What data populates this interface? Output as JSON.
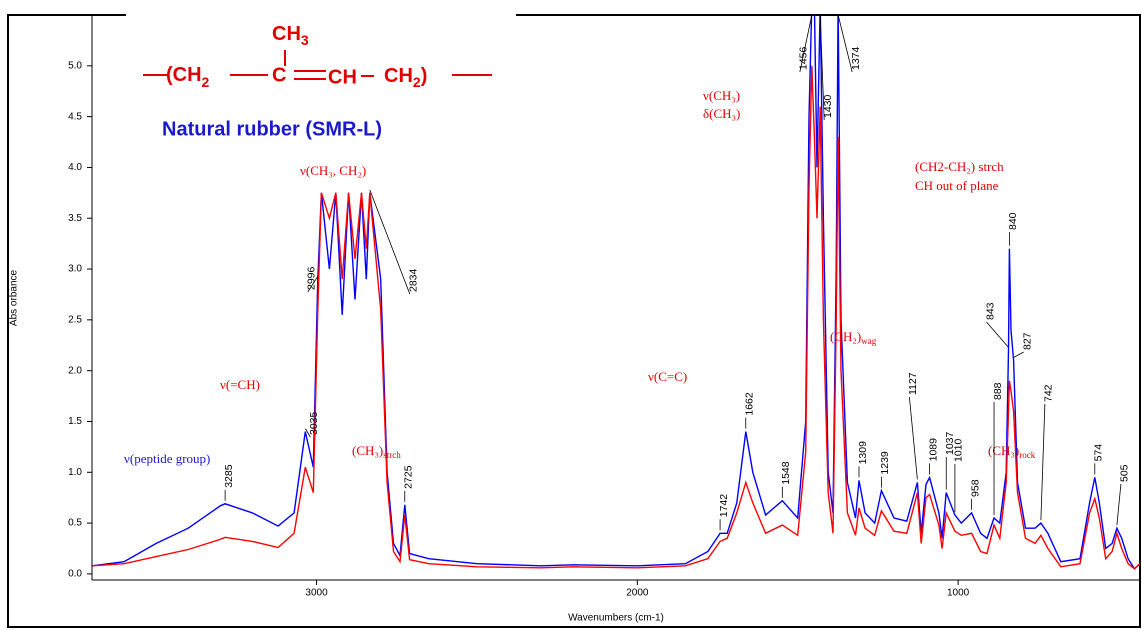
{
  "chart_data": {
    "type": "line",
    "x_label": "Wavenumbers (cm-1)",
    "y_label": "Abs orbance",
    "xlim": [
      3700,
      433
    ],
    "ylim": [
      -0.06,
      5.5
    ],
    "xticks": [
      3000,
      2000,
      1000
    ],
    "yticks": [
      {
        "value": 0,
        "label": "0.0"
      },
      0.5,
      {
        "value": 1,
        "label": "1.0"
      },
      1.5,
      {
        "value": 2,
        "label": "2.0"
      },
      2.5,
      {
        "value": 3,
        "label": "3.0"
      },
      3.5,
      {
        "value": 4,
        "label": "4.0"
      },
      4.5,
      {
        "value": 5,
        "label": "5.0"
      }
    ],
    "x": [
      3700,
      3600,
      3500,
      3400,
      3300,
      3285,
      3200,
      3120,
      3070,
      3035,
      3010,
      2996,
      2985,
      2960,
      2940,
      2920,
      2900,
      2880,
      2860,
      2845,
      2834,
      2800,
      2780,
      2760,
      2740,
      2725,
      2710,
      2650,
      2500,
      2300,
      2200,
      2000,
      1850,
      1780,
      1742,
      1720,
      1690,
      1662,
      1640,
      1600,
      1548,
      1500,
      1475,
      1465,
      1456,
      1448,
      1440,
      1430,
      1420,
      1405,
      1390,
      1380,
      1374,
      1365,
      1345,
      1320,
      1309,
      1290,
      1260,
      1239,
      1200,
      1160,
      1127,
      1115,
      1100,
      1089,
      1060,
      1050,
      1037,
      1010,
      990,
      958,
      930,
      910,
      888,
      870,
      850,
      843,
      840,
      835,
      827,
      815,
      790,
      760,
      742,
      720,
      680,
      620,
      590,
      574,
      560,
      540,
      520,
      505,
      490,
      470,
      450,
      433
    ],
    "series": [
      {
        "name": "Natural rubber (SMR-L)",
        "color": "#0000ff",
        "values": [
          0.08,
          0.12,
          0.3,
          0.45,
          0.67,
          0.69,
          0.6,
          0.47,
          0.6,
          1.4,
          1.05,
          2.9,
          3.75,
          3.0,
          3.75,
          2.55,
          3.75,
          2.7,
          3.75,
          2.9,
          3.75,
          2.9,
          1.0,
          0.3,
          0.18,
          0.68,
          0.2,
          0.15,
          0.1,
          0.08,
          0.09,
          0.08,
          0.1,
          0.22,
          0.4,
          0.4,
          0.7,
          1.4,
          1.0,
          0.58,
          0.72,
          0.55,
          1.5,
          4.5,
          5.6,
          5.6,
          4.0,
          5.6,
          3.5,
          1.0,
          0.6,
          3.0,
          5.6,
          2.5,
          0.9,
          0.55,
          0.92,
          0.6,
          0.5,
          0.82,
          0.55,
          0.52,
          0.9,
          0.4,
          0.88,
          0.95,
          0.6,
          0.35,
          0.8,
          0.58,
          0.5,
          0.6,
          0.4,
          0.35,
          0.55,
          0.5,
          1.0,
          2.2,
          3.2,
          2.4,
          2.1,
          0.9,
          0.45,
          0.45,
          0.5,
          0.4,
          0.12,
          0.15,
          0.7,
          0.95,
          0.7,
          0.25,
          0.3,
          0.45,
          0.35,
          0.15,
          0.05,
          0.1
        ]
      },
      {
        "name": "red",
        "color": "#ff0000",
        "values": [
          0.08,
          0.1,
          0.17,
          0.24,
          0.34,
          0.36,
          0.32,
          0.26,
          0.4,
          1.05,
          0.8,
          2.6,
          3.75,
          3.5,
          3.75,
          2.9,
          3.75,
          3.1,
          3.75,
          3.2,
          3.75,
          2.6,
          0.9,
          0.22,
          0.12,
          0.58,
          0.14,
          0.1,
          0.07,
          0.06,
          0.07,
          0.06,
          0.08,
          0.15,
          0.32,
          0.35,
          0.6,
          0.9,
          0.7,
          0.4,
          0.48,
          0.38,
          1.2,
          3.8,
          5.0,
          4.3,
          3.5,
          4.6,
          2.5,
          0.8,
          0.4,
          2.5,
          4.3,
          2.0,
          0.6,
          0.38,
          0.65,
          0.45,
          0.38,
          0.62,
          0.42,
          0.4,
          0.8,
          0.3,
          0.75,
          0.78,
          0.48,
          0.25,
          0.6,
          0.42,
          0.38,
          0.4,
          0.22,
          0.2,
          0.48,
          0.35,
          0.9,
          1.6,
          1.9,
          1.8,
          1.6,
          0.8,
          0.35,
          0.3,
          0.38,
          0.25,
          0.07,
          0.1,
          0.6,
          0.74,
          0.55,
          0.15,
          0.22,
          0.4,
          0.25,
          0.1,
          0.05,
          0.1
        ]
      }
    ],
    "peak_labels": [
      3285,
      3035,
      2996,
      2834,
      2725,
      1742,
      1662,
      1548,
      1456,
      1430,
      1374,
      1309,
      1239,
      1127,
      1089,
      1037,
      1010,
      958,
      888,
      843,
      840,
      827,
      742,
      574,
      505
    ],
    "structure": {
      "methyl": "CH",
      "methyl_sub": "3",
      "left": "(CH",
      "left_sub": "2",
      "center": "C",
      "right_ch": "CH",
      "end": "CH",
      "end_sub": "2",
      "close": ")",
      "name": "Natural rubber (SMR-L)"
    },
    "annotations": {
      "peptide": "ν(peptide group)",
      "eq_ch": "ν(=CH)",
      "ch3_ch2": "ν(CH₃, CH₂)",
      "strch": "(CH₃)",
      "strch_sub": "strch",
      "cc": "ν(C=C)",
      "nu_ch3": "ν(CH₃)",
      "delta_ch3": "δ(CH₃)",
      "wag": "(CH₂)",
      "wag_sub": "wag",
      "ch2ch2": "(CH2-CH₂) strch",
      "oop": "CH out of plane",
      "rock": "(CH₃)",
      "rock_sub": "rock"
    }
  }
}
